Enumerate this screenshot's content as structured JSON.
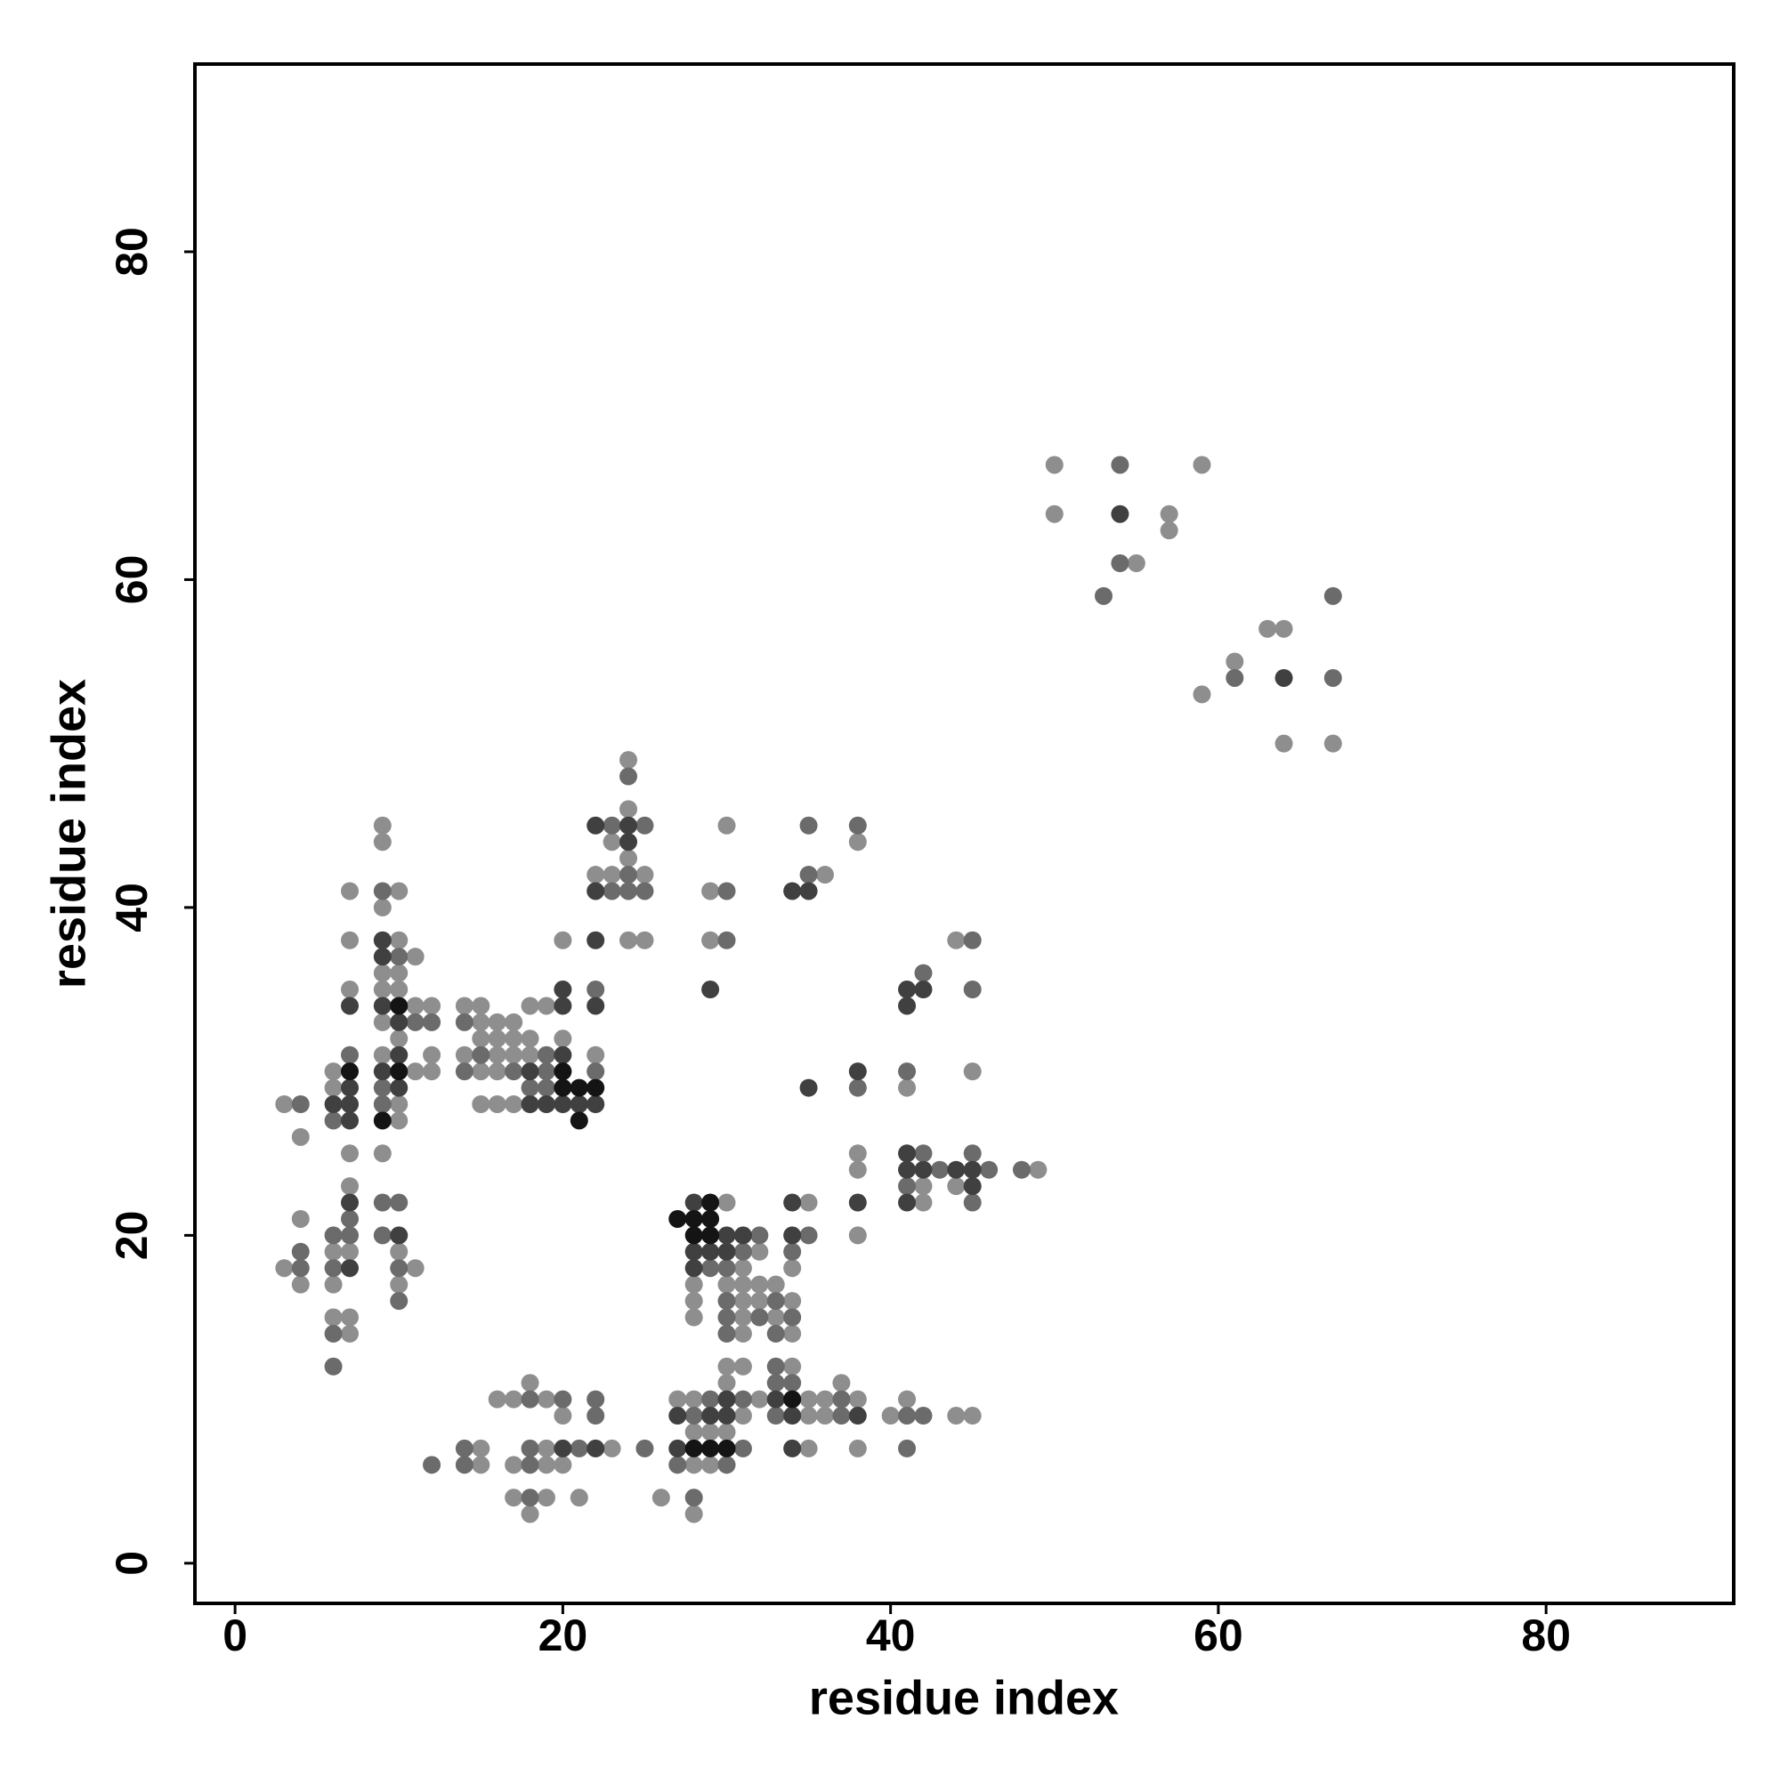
{
  "chart_data": {
    "type": "scatter",
    "xlabel": "residue index",
    "ylabel": "residue index",
    "xlim": [
      -2.45,
      91.45
    ],
    "ylim": [
      -2.45,
      91.45
    ],
    "xticks": [
      0,
      20,
      40,
      60,
      80
    ],
    "yticks": [
      0,
      20,
      40,
      60,
      80
    ],
    "series": [
      {
        "color": "#8e8e8e",
        "x": [
          50,
          59,
          50,
          57,
          57,
          55,
          63,
          64,
          61,
          59,
          64,
          67,
          24,
          24,
          23,
          24,
          22,
          23,
          25,
          24,
          25,
          18,
          19,
          20,
          20,
          30,
          29,
          29,
          36,
          38,
          44,
          41,
          45,
          38,
          38,
          42,
          44,
          42,
          38,
          49,
          9,
          9,
          7,
          10,
          9,
          7,
          10,
          11,
          9,
          10,
          7,
          9,
          10,
          11,
          12,
          9,
          10,
          9,
          12,
          6,
          11,
          12,
          6,
          3,
          10,
          10,
          4,
          7,
          9,
          7,
          4,
          6,
          7,
          10,
          3,
          11,
          4,
          6,
          10,
          6,
          7,
          7,
          14,
          15,
          15,
          16,
          17,
          15,
          16,
          17,
          18,
          14,
          16,
          17,
          18,
          22,
          15,
          16,
          15,
          16,
          17,
          30,
          35,
          32,
          31,
          34,
          28,
          30,
          31,
          32,
          33,
          28,
          31,
          32,
          34,
          28,
          31,
          33,
          31,
          34,
          30,
          31,
          34,
          18,
          30,
          37,
          16,
          17,
          19,
          27,
          28,
          32,
          35,
          36,
          38,
          41,
          20,
          31,
          35,
          36,
          40,
          44,
          45,
          28,
          29,
          30,
          15,
          19,
          23,
          35,
          38,
          15,
          17,
          19,
          20,
          28,
          29,
          17,
          19,
          21,
          26,
          18,
          28
        ],
        "y": [
          67,
          67,
          64,
          64,
          63,
          61,
          57,
          57,
          55,
          53,
          50,
          50,
          49,
          46,
          44,
          43,
          42,
          42,
          42,
          38,
          38,
          34,
          34,
          32,
          38,
          45,
          41,
          38,
          42,
          44,
          38,
          29,
          30,
          25,
          24,
          23,
          23,
          22,
          20,
          24,
          45,
          44,
          41,
          41,
          40,
          38,
          38,
          37,
          36,
          36,
          35,
          35,
          35,
          34,
          34,
          33,
          32,
          31,
          31,
          30,
          30,
          30,
          29,
          28,
          28,
          27,
          26,
          25,
          25,
          23,
          21,
          19,
          19,
          19,
          18,
          18,
          17,
          17,
          17,
          15,
          15,
          14,
          34,
          34,
          33,
          33,
          33,
          32,
          32,
          32,
          32,
          31,
          31,
          31,
          31,
          31,
          30,
          30,
          28,
          28,
          28,
          22,
          22,
          19,
          18,
          18,
          17,
          17,
          17,
          17,
          17,
          16,
          16,
          16,
          16,
          15,
          15,
          15,
          14,
          14,
          12,
          12,
          12,
          11,
          11,
          11,
          10,
          10,
          10,
          10,
          10,
          10,
          10,
          10,
          10,
          10,
          9,
          9,
          9,
          9,
          9,
          9,
          9,
          8,
          8,
          8,
          7,
          7,
          7,
          7,
          7,
          6,
          6,
          6,
          6,
          6,
          6,
          4,
          4,
          4,
          4,
          3,
          3
        ]
      },
      {
        "color": "#6b6b6b",
        "x": [
          54,
          54,
          53,
          67,
          61,
          67,
          24,
          23,
          25,
          24,
          23,
          24,
          25,
          22,
          30,
          30,
          35,
          35,
          38,
          45,
          42,
          45,
          41,
          38,
          42,
          45,
          43,
          46,
          48,
          41,
          45,
          9,
          10,
          11,
          12,
          7,
          9,
          4,
          9,
          6,
          9,
          10,
          7,
          6,
          7,
          9,
          4,
          4,
          6,
          10,
          10,
          6,
          6,
          14,
          15,
          19,
          14,
          17,
          19,
          22,
          18,
          19,
          32,
          35,
          31,
          34,
          29,
          30,
          30,
          33,
          30,
          32,
          34,
          30,
          33,
          33,
          33,
          34,
          18,
          20,
          22,
          29,
          31,
          37,
          22,
          28,
          33,
          37,
          41,
          42,
          14,
          18,
          21,
          25,
          31,
          41,
          12,
          14,
          18,
          27,
          30,
          18,
          28
        ],
        "y": [
          67,
          61,
          59,
          59,
          54,
          54,
          48,
          45,
          45,
          42,
          41,
          41,
          41,
          35,
          41,
          38,
          45,
          42,
          45,
          38,
          36,
          35,
          30,
          29,
          25,
          25,
          24,
          24,
          24,
          23,
          22,
          41,
          37,
          33,
          33,
          31,
          29,
          28,
          28,
          27,
          22,
          22,
          21,
          20,
          20,
          20,
          19,
          18,
          18,
          18,
          16,
          14,
          12,
          33,
          31,
          31,
          30,
          30,
          30,
          30,
          29,
          29,
          20,
          20,
          19,
          19,
          18,
          18,
          16,
          16,
          15,
          15,
          15,
          14,
          14,
          12,
          11,
          11,
          10,
          10,
          10,
          10,
          10,
          10,
          9,
          9,
          9,
          9,
          9,
          9,
          7,
          7,
          7,
          7,
          7,
          7,
          6,
          6,
          6,
          6,
          6,
          4,
          4
        ]
      },
      {
        "color": "#404040",
        "x": [
          54,
          64,
          22,
          24,
          24,
          22,
          22,
          22,
          20,
          20,
          29,
          34,
          35,
          41,
          42,
          41,
          38,
          35,
          41,
          41,
          42,
          44,
          45,
          45,
          41,
          38,
          9,
          9,
          7,
          9,
          10,
          10,
          9,
          7,
          10,
          6,
          7,
          7,
          7,
          10,
          7,
          20,
          18,
          18,
          19,
          20,
          21,
          22,
          28,
          34,
          30,
          31,
          34,
          28,
          29,
          30,
          28,
          30,
          33,
          27,
          29,
          30,
          34,
          38,
          20,
          22,
          27,
          34
        ],
        "y": [
          64,
          54,
          45,
          45,
          44,
          41,
          38,
          34,
          35,
          34,
          35,
          41,
          41,
          35,
          35,
          34,
          30,
          29,
          25,
          24,
          24,
          24,
          24,
          23,
          22,
          22,
          38,
          37,
          34,
          34,
          33,
          31,
          30,
          29,
          29,
          28,
          28,
          27,
          22,
          20,
          18,
          31,
          30,
          28,
          28,
          28,
          28,
          28,
          22,
          22,
          20,
          20,
          20,
          19,
          19,
          19,
          18,
          10,
          10,
          9,
          9,
          9,
          9,
          9,
          7,
          7,
          7,
          7
        ]
      },
      {
        "color": "#141414",
        "x": [
          10,
          7,
          10,
          9,
          20,
          20,
          21,
          22,
          21,
          29,
          27,
          28,
          29,
          28,
          29,
          34,
          28,
          29,
          30
        ],
        "y": [
          34,
          30,
          30,
          27,
          30,
          29,
          29,
          29,
          27,
          22,
          21,
          21,
          21,
          20,
          20,
          10,
          7,
          7,
          7
        ]
      }
    ]
  }
}
